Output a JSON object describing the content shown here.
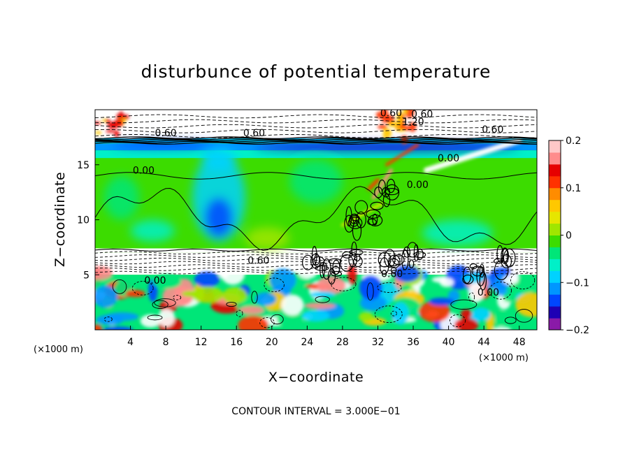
{
  "chart_data": {
    "type": "heatmap",
    "title": "disturbunce of potential temperature",
    "xlabel": "X−coordinate",
    "ylabel": "Z−coordinate",
    "x_unit": "(×1000 m)",
    "y_unit": "(×1000 m)",
    "xlim": [
      0,
      50
    ],
    "ylim": [
      0,
      20
    ],
    "x_ticks": [
      4,
      8,
      12,
      16,
      20,
      24,
      28,
      32,
      36,
      40,
      44,
      48
    ],
    "x_tick_labels": [
      "4",
      "8",
      "12",
      "16",
      "20",
      "24",
      "28",
      "32",
      "36",
      "40",
      "44",
      "48"
    ],
    "y_ticks": [
      5,
      10,
      15
    ],
    "y_tick_labels": [
      "5",
      "10",
      "15"
    ],
    "colorbar": {
      "min": -0.2,
      "max": 0.2,
      "ticks": [
        0.2,
        0.1,
        0,
        -0.1,
        -0.2
      ],
      "tick_labels": [
        "0.2",
        "0.1",
        "0",
        "−0.1",
        "−0.2"
      ],
      "colors": [
        "#8a1aa8",
        "#1e00b4",
        "#0046ff",
        "#0096ff",
        "#00d2ff",
        "#00f0c8",
        "#00e678",
        "#3cdc00",
        "#a0e600",
        "#e6e600",
        "#ffc800",
        "#ff8c00",
        "#ff3200",
        "#e60000",
        "#ff8c8c",
        "#ffc8c8"
      ]
    },
    "contour_labels": [
      {
        "x": 33.5,
        "z": 19.4,
        "text": "0.60"
      },
      {
        "x": 36.0,
        "z": 18.6,
        "text": "1.20"
      },
      {
        "x": 8.0,
        "z": 17.6,
        "text": "0.60"
      },
      {
        "x": 18.0,
        "z": 17.6,
        "text": "0.60"
      },
      {
        "x": 45.0,
        "z": 17.9,
        "text": "0.60"
      },
      {
        "x": 37.0,
        "z": 19.3,
        "text": "0.60"
      },
      {
        "x": 5.5,
        "z": 14.2,
        "text": "0.00"
      },
      {
        "x": 36.5,
        "z": 12.9,
        "text": "0.00"
      },
      {
        "x": 40.0,
        "z": 15.3,
        "text": "0.00"
      },
      {
        "x": 18.5,
        "z": 6.0,
        "text": "0.60"
      },
      {
        "x": 6.8,
        "z": 4.2,
        "text": "0.00"
      },
      {
        "x": 33.6,
        "z": 4.8,
        "text": "0.60"
      },
      {
        "x": 44.5,
        "z": 3.1,
        "text": "0.00"
      }
    ],
    "footer": "CONTOUR INTERVAL = 3.000E−01"
  }
}
